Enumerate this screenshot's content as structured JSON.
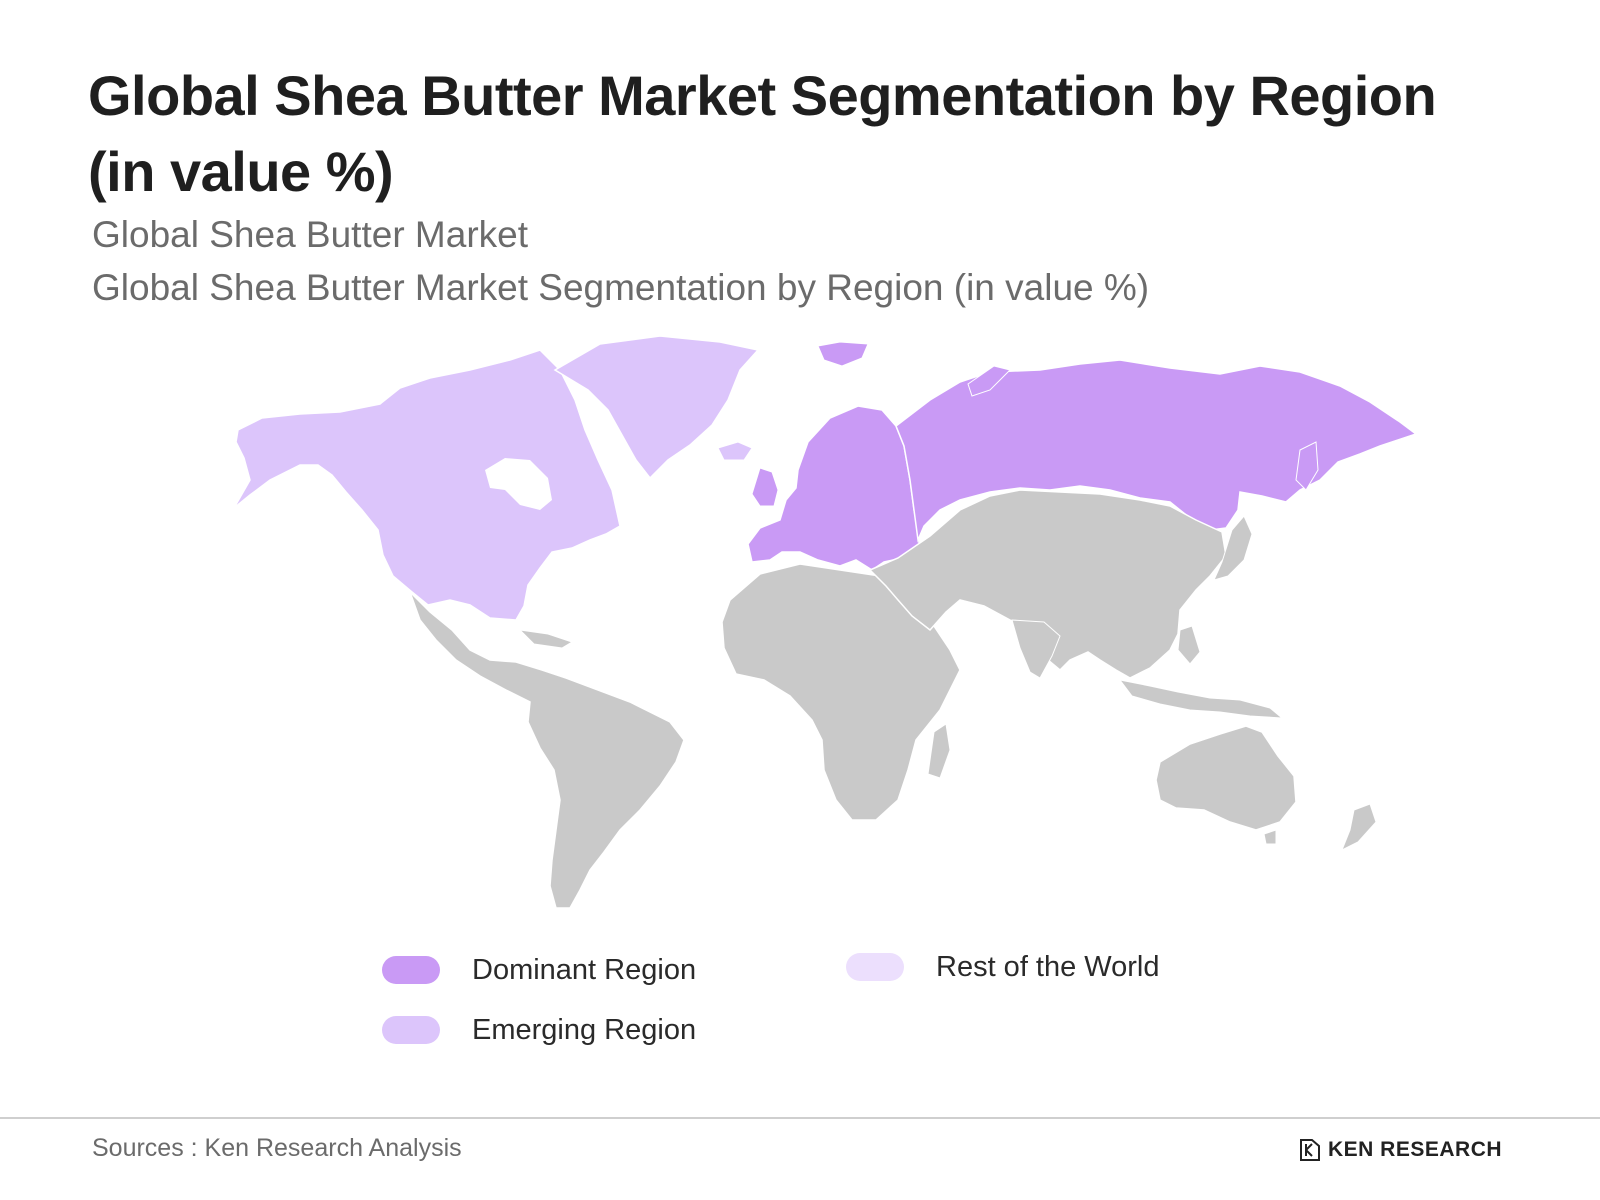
{
  "title": "Global Shea Butter Market Segmentation by Region (in value %)",
  "subtitle_1": "Global Shea Butter Market",
  "subtitle_2": "Global Shea Butter Market Segmentation by Region (in value %)",
  "map": {
    "regions": [
      {
        "name": "North America",
        "category": "Emerging Region"
      },
      {
        "name": "Greenland",
        "category": "Emerging Region"
      },
      {
        "name": "Europe",
        "category": "Dominant Region"
      },
      {
        "name": "Russia",
        "category": "Dominant Region"
      },
      {
        "name": "Latin America",
        "category": "Rest of the World (grey)"
      },
      {
        "name": "Africa",
        "category": "Rest of the World (grey)"
      },
      {
        "name": "Asia",
        "category": "Rest of the World (grey)"
      },
      {
        "name": "Oceania",
        "category": "Rest of the World (grey)"
      }
    ],
    "colors": {
      "dominant": "#c99af5",
      "emerging": "#dcc5fb",
      "rest": "#ecdffd",
      "land_grey": "#c9c9c9"
    }
  },
  "legend": [
    {
      "label": "Dominant Region",
      "color": "#c99af5"
    },
    {
      "label": "Emerging Region",
      "color": "#dcc5fb"
    },
    {
      "label": "Rest of the World",
      "color": "#ecdffd"
    }
  ],
  "footer": {
    "source": "Sources : Ken Research Analysis",
    "logo_text": "KEN RESEARCH"
  }
}
